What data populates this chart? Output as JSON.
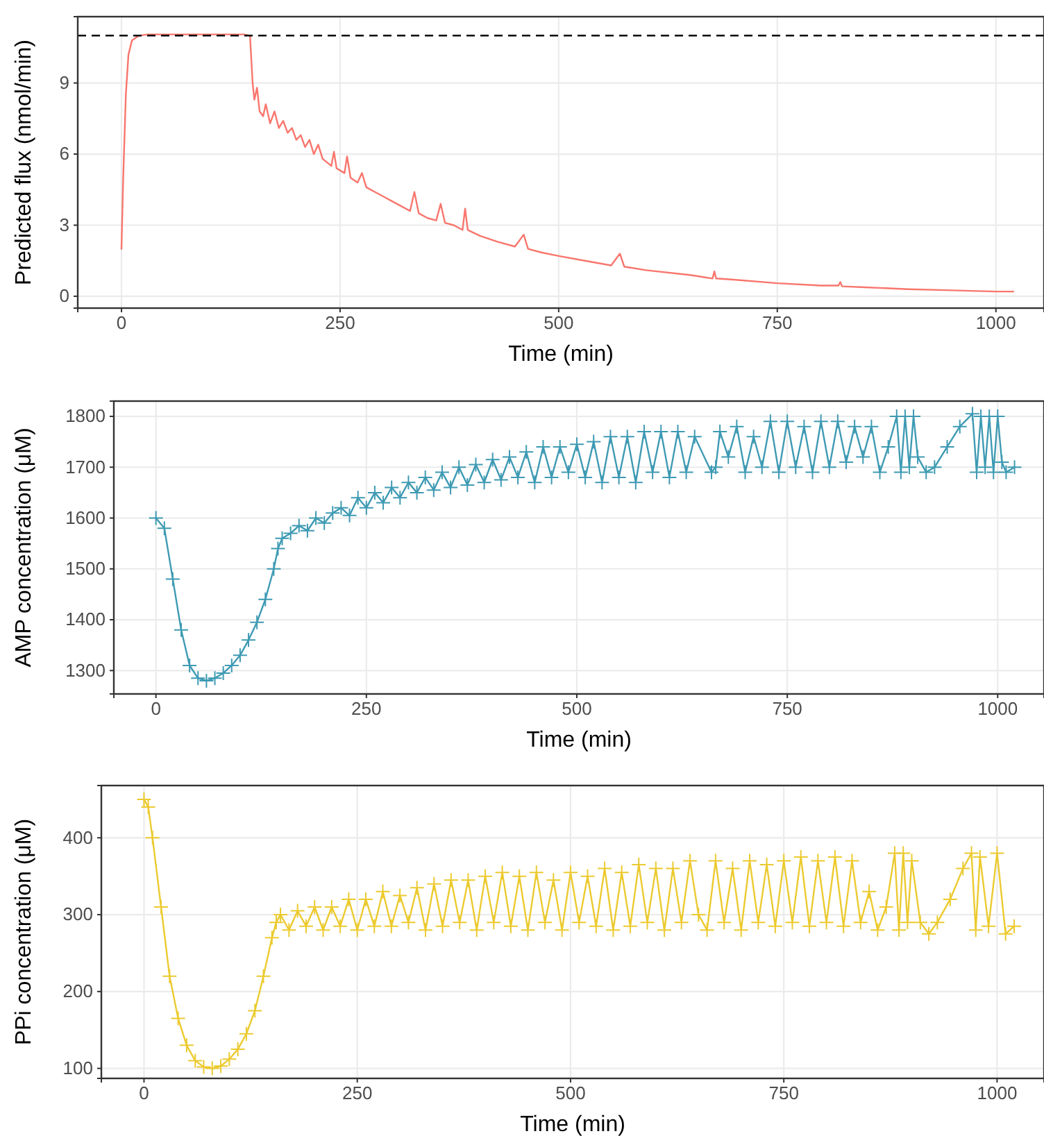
{
  "chart_data": [
    {
      "type": "line",
      "xlabel": "Time (min)",
      "ylabel": "Predicted flux (nmol/min)",
      "xlim": [
        -50,
        1055
      ],
      "ylim": [
        -0.5,
        11.8
      ],
      "xticks": [
        0,
        250,
        500,
        750,
        1000
      ],
      "yticks": [
        0,
        3,
        6,
        9
      ],
      "grid": true,
      "ref_lines": [
        {
          "axis": "y",
          "value": 11,
          "color": "#000000",
          "line_style": "dashed"
        }
      ],
      "series": [
        {
          "color": "#f8766d",
          "x": [
            0,
            2,
            5,
            8,
            12,
            20,
            30,
            60,
            100,
            140,
            147,
            150,
            152,
            155,
            158,
            162,
            165,
            170,
            175,
            180,
            185,
            190,
            195,
            200,
            205,
            210,
            215,
            220,
            225,
            230,
            240,
            243,
            246,
            255,
            258,
            262,
            270,
            275,
            280,
            290,
            300,
            310,
            320,
            330,
            335,
            340,
            350,
            360,
            365,
            370,
            380,
            390,
            393,
            396,
            410,
            430,
            450,
            460,
            465,
            480,
            500,
            530,
            560,
            570,
            575,
            600,
            650,
            676,
            678,
            680,
            700,
            750,
            800,
            820,
            822,
            824,
            850,
            900,
            950,
            1000,
            1020
          ],
          "values": [
            2.0,
            5,
            8.5,
            10.2,
            10.8,
            11.0,
            11.05,
            11.05,
            11.05,
            11.05,
            11.0,
            9.0,
            8.3,
            8.8,
            7.8,
            7.6,
            8.1,
            7.3,
            7.8,
            7.1,
            7.4,
            6.9,
            7.1,
            6.6,
            6.8,
            6.3,
            6.6,
            6.0,
            6.4,
            5.8,
            5.5,
            6.1,
            5.4,
            5.2,
            5.9,
            5.0,
            4.8,
            5.2,
            4.6,
            4.4,
            4.2,
            4.0,
            3.8,
            3.6,
            4.4,
            3.5,
            3.3,
            3.2,
            3.9,
            3.1,
            3.0,
            2.8,
            3.7,
            2.8,
            2.55,
            2.3,
            2.1,
            2.6,
            2.0,
            1.85,
            1.7,
            1.5,
            1.3,
            1.8,
            1.25,
            1.1,
            0.9,
            0.75,
            1.05,
            0.75,
            0.7,
            0.55,
            0.45,
            0.45,
            0.6,
            0.42,
            0.38,
            0.3,
            0.25,
            0.2,
            0.2
          ]
        }
      ]
    },
    {
      "type": "line",
      "marker": "cross",
      "xlabel": "Time (min)",
      "ylabel": "AMP concentration (μM)",
      "xlim": [
        -50,
        1055
      ],
      "ylim": [
        1254,
        1830
      ],
      "xticks": [
        0,
        250,
        500,
        750,
        1000
      ],
      "yticks": [
        1300,
        1400,
        1500,
        1600,
        1700,
        1800
      ],
      "grid": true,
      "series": [
        {
          "color": "#3e9ab3",
          "x": [
            0,
            10,
            20,
            30,
            40,
            50,
            60,
            70,
            80,
            90,
            100,
            110,
            120,
            130,
            140,
            145,
            150,
            160,
            170,
            180,
            190,
            200,
            210,
            220,
            230,
            240,
            250,
            260,
            270,
            280,
            290,
            300,
            310,
            320,
            330,
            340,
            350,
            360,
            370,
            380,
            390,
            400,
            410,
            420,
            430,
            440,
            450,
            460,
            470,
            480,
            490,
            500,
            510,
            520,
            530,
            540,
            550,
            560,
            570,
            580,
            590,
            600,
            610,
            620,
            630,
            640,
            660,
            665,
            670,
            680,
            690,
            700,
            710,
            720,
            730,
            740,
            750,
            760,
            770,
            780,
            790,
            800,
            810,
            820,
            830,
            840,
            850,
            860,
            870,
            880,
            885,
            890,
            895,
            900,
            905,
            915,
            925,
            940,
            955,
            970,
            975,
            980,
            985,
            990,
            995,
            1000,
            1005,
            1010,
            1020
          ],
          "values": [
            1600,
            1580,
            1480,
            1380,
            1310,
            1285,
            1280,
            1285,
            1295,
            1310,
            1330,
            1360,
            1395,
            1440,
            1500,
            1540,
            1560,
            1570,
            1585,
            1575,
            1600,
            1590,
            1610,
            1620,
            1605,
            1640,
            1620,
            1650,
            1630,
            1660,
            1640,
            1670,
            1650,
            1680,
            1655,
            1690,
            1660,
            1700,
            1665,
            1705,
            1670,
            1715,
            1675,
            1720,
            1680,
            1730,
            1670,
            1740,
            1680,
            1740,
            1690,
            1745,
            1680,
            1750,
            1670,
            1760,
            1680,
            1760,
            1670,
            1770,
            1690,
            1770,
            1680,
            1770,
            1690,
            1760,
            1690,
            1700,
            1770,
            1720,
            1780,
            1690,
            1760,
            1700,
            1790,
            1690,
            1790,
            1700,
            1780,
            1690,
            1790,
            1700,
            1790,
            1710,
            1780,
            1720,
            1780,
            1690,
            1740,
            1800,
            1690,
            1800,
            1700,
            1800,
            1720,
            1690,
            1700,
            1740,
            1780,
            1805,
            1690,
            1800,
            1700,
            1800,
            1690,
            1800,
            1710,
            1690,
            1700
          ]
        }
      ]
    },
    {
      "type": "line",
      "marker": "cross",
      "xlabel": "Time (min)",
      "ylabel": "PPi concentration (μM)",
      "xlim": [
        -50,
        1055
      ],
      "ylim": [
        87,
        468
      ],
      "xticks": [
        0,
        250,
        500,
        750,
        1000
      ],
      "yticks": [
        100,
        200,
        300,
        400
      ],
      "grid": true,
      "series": [
        {
          "color": "#ecca2f",
          "x": [
            0,
            5,
            10,
            20,
            30,
            40,
            50,
            60,
            70,
            80,
            90,
            100,
            110,
            120,
            130,
            140,
            150,
            155,
            160,
            170,
            180,
            190,
            200,
            210,
            220,
            230,
            240,
            250,
            260,
            270,
            280,
            290,
            300,
            310,
            320,
            330,
            340,
            350,
            360,
            370,
            380,
            390,
            400,
            410,
            420,
            430,
            440,
            450,
            460,
            470,
            480,
            490,
            500,
            510,
            520,
            530,
            540,
            550,
            560,
            570,
            580,
            590,
            600,
            610,
            620,
            630,
            640,
            650,
            660,
            670,
            680,
            690,
            700,
            710,
            720,
            730,
            740,
            750,
            760,
            770,
            780,
            790,
            800,
            810,
            820,
            830,
            840,
            850,
            860,
            870,
            880,
            885,
            890,
            895,
            900,
            910,
            920,
            930,
            945,
            960,
            970,
            975,
            980,
            990,
            1000,
            1010,
            1020
          ],
          "values": [
            450,
            440,
            400,
            310,
            220,
            165,
            130,
            110,
            102,
            100,
            103,
            112,
            125,
            145,
            175,
            220,
            270,
            290,
            300,
            280,
            305,
            285,
            310,
            280,
            310,
            285,
            320,
            280,
            320,
            285,
            330,
            285,
            325,
            290,
            335,
            280,
            340,
            285,
            345,
            290,
            345,
            280,
            350,
            290,
            355,
            285,
            350,
            280,
            355,
            290,
            345,
            280,
            355,
            290,
            350,
            285,
            360,
            280,
            355,
            285,
            365,
            290,
            360,
            280,
            360,
            290,
            370,
            300,
            280,
            370,
            290,
            360,
            280,
            370,
            290,
            365,
            285,
            370,
            290,
            375,
            285,
            370,
            290,
            375,
            285,
            370,
            290,
            330,
            280,
            310,
            380,
            280,
            380,
            290,
            370,
            290,
            275,
            290,
            320,
            360,
            380,
            280,
            375,
            285,
            380,
            275,
            285
          ]
        }
      ]
    }
  ]
}
